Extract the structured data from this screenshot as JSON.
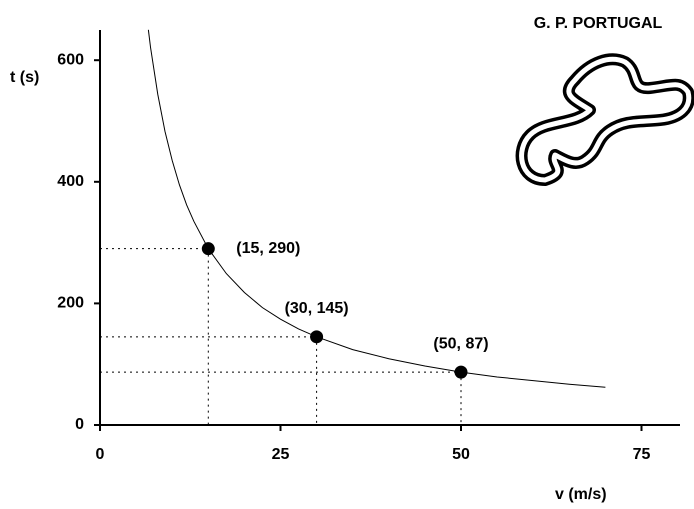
{
  "chart_data": {
    "type": "line",
    "title": "G. P. PORTUGAL",
    "x_label": "v (m/s)",
    "y_label": "t (s)",
    "x": [
      6.7,
      7,
      8,
      9,
      10,
      11,
      12,
      13,
      15,
      17.5,
      20,
      22.5,
      25,
      27.5,
      30,
      35,
      40,
      45,
      50,
      55,
      60,
      65,
      70
    ],
    "values": [
      650,
      621,
      544,
      483,
      435,
      395,
      362,
      335,
      290,
      249,
      218,
      193,
      174,
      158,
      145,
      124,
      109,
      97,
      87,
      79,
      73,
      67,
      62
    ],
    "color": "#000000",
    "points": {
      "x": [
        15,
        30,
        50
      ],
      "values": [
        290,
        145,
        87
      ],
      "labels": [
        "(15, 290)",
        "(30, 145)",
        "(50, 87)"
      ]
    },
    "xlim": [
      0,
      80
    ],
    "ylim": [
      0,
      650
    ],
    "xticks": [
      0,
      25,
      50,
      75
    ],
    "yticks": [
      0,
      200,
      400,
      600
    ],
    "grid": false
  }
}
